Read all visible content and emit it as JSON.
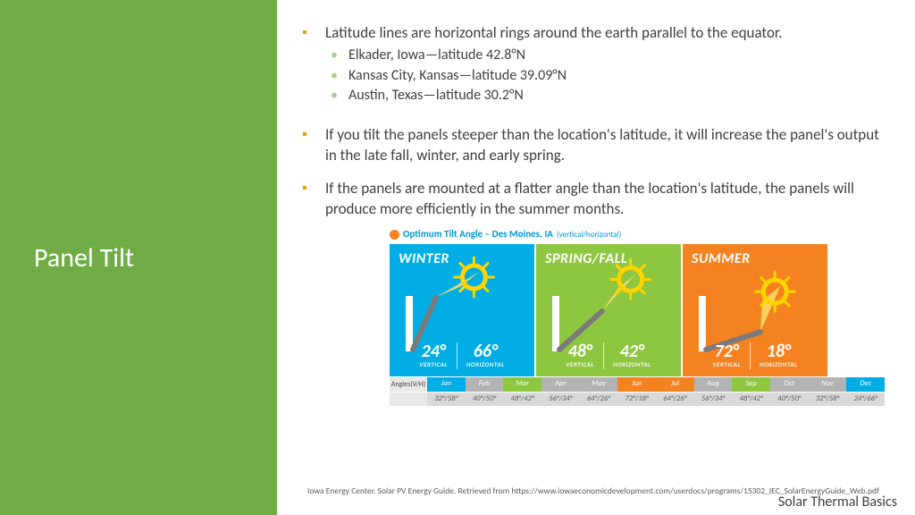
{
  "sidebar": {
    "title": "Panel Tilt"
  },
  "bullets": {
    "b1": "Latitude lines are horizontal rings around the earth parallel to the equator.",
    "b1_sub": {
      "s1": "Elkader, Iowa—latitude 42.8°N",
      "s2": "Kansas City, Kansas—latitude 39.09°N",
      "s3": "Austin, Texas—latitude 30.2°N"
    },
    "b2": " If you tilt the panels steeper than the location's latitude, it will increase the panel's output in the late fall, winter, and early spring.",
    "b3": "If the panels are mounted at a flatter angle than the location's latitude, the panels will produce more efficiently in the summer months."
  },
  "infographic": {
    "title_main": "Optimum Tilt Angle – Des Moines, IA",
    "title_small": "(vertical/horizontal)",
    "seasons": {
      "winter": {
        "label": "WINTER",
        "bg": "#00aee5",
        "vert": "24°",
        "horiz": "66°",
        "panel_angle_deg": 24,
        "sun_elev_deg": 28
      },
      "spring": {
        "label": "SPRING/FALL",
        "bg": "#8dc63f",
        "vert": "48°",
        "horiz": "42°",
        "panel_angle_deg": 48,
        "sun_elev_deg": 48
      },
      "summer": {
        "label": "SUMMER",
        "bg": "#f58220",
        "vert": "72°",
        "horiz": "18°",
        "panel_angle_deg": 72,
        "sun_elev_deg": 70
      }
    },
    "vert_caption": "VERTICAL",
    "horiz_caption": "HORIZONTAL",
    "months_label": "Angles(V/H)",
    "months": [
      {
        "name": "Jan",
        "val": "32°/58°",
        "bg": "#00aee5"
      },
      {
        "name": "Feb",
        "val": "40°/50°",
        "bg": "#b3b3b3"
      },
      {
        "name": "Mar",
        "val": "48°/42°",
        "bg": "#8dc63f"
      },
      {
        "name": "Apr",
        "val": "56°/34°",
        "bg": "#b3b3b3"
      },
      {
        "name": "May",
        "val": "64°/26°",
        "bg": "#b3b3b3"
      },
      {
        "name": "Jun",
        "val": "72°/18°",
        "bg": "#f58220"
      },
      {
        "name": "Jul",
        "val": "64°/26°",
        "bg": "#f58220"
      },
      {
        "name": "Aug",
        "val": "56°/34°",
        "bg": "#b3b3b3"
      },
      {
        "name": "Sep",
        "val": "48°/42°",
        "bg": "#8dc63f"
      },
      {
        "name": "Oct",
        "val": "40°/50°",
        "bg": "#b3b3b3"
      },
      {
        "name": "Nov",
        "val": "32°/58°",
        "bg": "#b3b3b3"
      },
      {
        "name": "Dec",
        "val": "24°/66°",
        "bg": "#00aee5"
      }
    ]
  },
  "citation": "Iowa Energy Center. Solar PV Energy Guide. Retrieved from https://www.iowaeconomicdevelopment.com/userdocs/programs/15302_IEC_SolarEnergyGuide_Web.pdf",
  "footer": "Solar Thermal Basics"
}
